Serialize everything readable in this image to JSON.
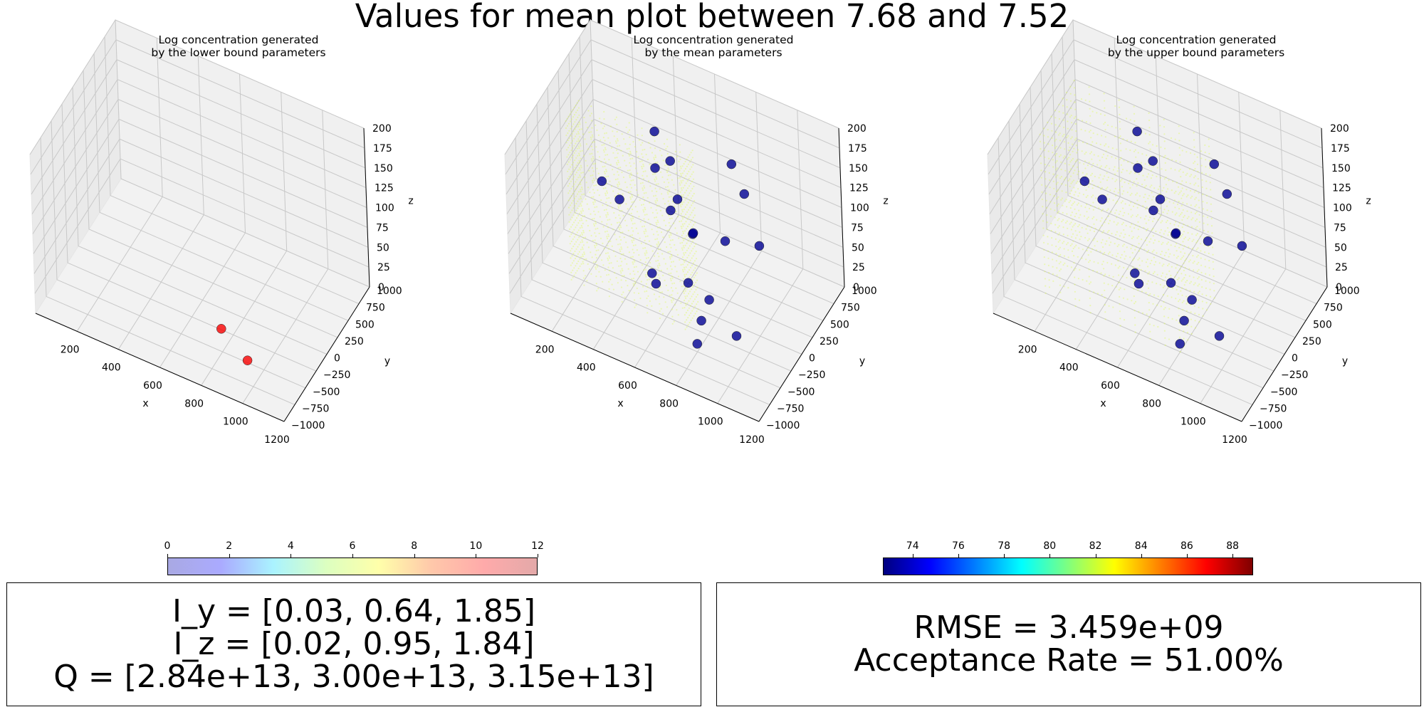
{
  "figure": {
    "suptitle": "Values for mean plot between 7.68 and 7.52"
  },
  "chart_data": [
    {
      "type": "scatter",
      "title": "Log concentration generated\nby the lower bound parameters",
      "xlabel": "x",
      "ylabel": "y",
      "zlabel": "z",
      "xlim": [
        0,
        1200
      ],
      "ylim": [
        -1000,
        1000
      ],
      "zlim": [
        0,
        200
      ],
      "xticks": [
        "200",
        "400",
        "600",
        "800",
        "1000",
        "1200"
      ],
      "yticks": [
        "−1000",
        "−750",
        "−500",
        "−250",
        "0",
        "250",
        "500",
        "750",
        "1000"
      ],
      "zticks": [
        "0",
        "25",
        "50",
        "75",
        "100",
        "125",
        "150",
        "175",
        "200"
      ],
      "grid": true,
      "concentration_cloud": null,
      "sensor_points": [
        {
          "x": 760,
          "y": -330,
          "z": 10,
          "value": 87
        },
        {
          "x": 925,
          "y": -520,
          "z": 5,
          "value": 87
        }
      ]
    },
    {
      "type": "scatter",
      "title": "Log concentration generated\nby the mean parameters",
      "xlabel": "x",
      "ylabel": "y",
      "zlabel": "z",
      "xlim": [
        0,
        1200
      ],
      "ylim": [
        -1000,
        1000
      ],
      "zlim": [
        0,
        200
      ],
      "xticks": [
        "200",
        "400",
        "600",
        "800",
        "1000",
        "1200"
      ],
      "yticks": [
        "−1000",
        "−750",
        "−500",
        "−250",
        "0",
        "250",
        "500",
        "750",
        "1000"
      ],
      "zticks": [
        "0",
        "25",
        "50",
        "75",
        "100",
        "125",
        "150",
        "175",
        "200"
      ],
      "grid": true,
      "concentration_cloud": {
        "x": [
          150,
          700
        ],
        "y": [
          -300,
          0
        ],
        "z": [
          0,
          200
        ],
        "color": "#dcff40"
      },
      "sensor_points": [
        {
          "x": 250,
          "y": 0,
          "z": 110,
          "value": 73
        },
        {
          "x": 300,
          "y": 150,
          "z": 80,
          "value": 73
        },
        {
          "x": 450,
          "y": 300,
          "z": 170,
          "value": 73
        },
        {
          "x": 480,
          "y": 150,
          "z": 140,
          "value": 73
        },
        {
          "x": 500,
          "y": 400,
          "z": 130,
          "value": 73
        },
        {
          "x": 560,
          "y": 100,
          "z": 100,
          "value": 73
        },
        {
          "x": 620,
          "y": 300,
          "z": 60,
          "value": 73
        },
        {
          "x": 640,
          "y": -100,
          "z": 140,
          "value": 73
        },
        {
          "x": 700,
          "y": -50,
          "z": 100,
          "value": 73
        },
        {
          "x": 520,
          "y": -180,
          "z": 40,
          "value": 73
        },
        {
          "x": 700,
          "y": -200,
          "z": 50,
          "value": 73
        },
        {
          "x": 520,
          "y": -100,
          "z": 20,
          "value": 73
        },
        {
          "x": 800,
          "y": 400,
          "z": 160,
          "value": 73
        },
        {
          "x": 880,
          "y": 300,
          "z": 140,
          "value": 73
        },
        {
          "x": 800,
          "y": 200,
          "z": 80,
          "value": 73
        },
        {
          "x": 800,
          "y": -200,
          "z": 40,
          "value": 73
        },
        {
          "x": 780,
          "y": -300,
          "z": 20,
          "value": 73
        },
        {
          "x": 950,
          "y": -300,
          "z": 20,
          "value": 73
        },
        {
          "x": 900,
          "y": 500,
          "z": 60,
          "value": 73
        },
        {
          "x": 800,
          "y": -500,
          "z": 10,
          "value": 73
        }
      ]
    },
    {
      "type": "scatter",
      "title": "Log concentration generated\nby the upper bound parameters",
      "xlabel": "x",
      "ylabel": "y",
      "zlabel": "z",
      "xlim": [
        0,
        1200
      ],
      "ylim": [
        -1000,
        1000
      ],
      "zlim": [
        0,
        200
      ],
      "xticks": [
        "200",
        "400",
        "600",
        "800",
        "1000",
        "1200"
      ],
      "yticks": [
        "−1000",
        "−750",
        "−500",
        "−250",
        "0",
        "250",
        "500",
        "750",
        "1000"
      ],
      "zticks": [
        "0",
        "25",
        "50",
        "75",
        "100",
        "125",
        "150",
        "175",
        "200"
      ],
      "grid": true,
      "concentration_cloud": {
        "x": [
          150,
          800
        ],
        "y": [
          -500,
          300
        ],
        "z": [
          0,
          200
        ],
        "color": "#dcff40"
      },
      "sensor_points": [
        {
          "x": 250,
          "y": 0,
          "z": 110,
          "value": 73
        },
        {
          "x": 300,
          "y": 150,
          "z": 80,
          "value": 73
        },
        {
          "x": 450,
          "y": 300,
          "z": 170,
          "value": 73
        },
        {
          "x": 480,
          "y": 150,
          "z": 140,
          "value": 73
        },
        {
          "x": 500,
          "y": 400,
          "z": 130,
          "value": 73
        },
        {
          "x": 560,
          "y": 100,
          "z": 100,
          "value": 73
        },
        {
          "x": 620,
          "y": 300,
          "z": 60,
          "value": 73
        },
        {
          "x": 640,
          "y": -100,
          "z": 140,
          "value": 73
        },
        {
          "x": 700,
          "y": -50,
          "z": 100,
          "value": 73
        },
        {
          "x": 520,
          "y": -180,
          "z": 40,
          "value": 73
        },
        {
          "x": 700,
          "y": -200,
          "z": 50,
          "value": 73
        },
        {
          "x": 520,
          "y": -100,
          "z": 20,
          "value": 73
        },
        {
          "x": 800,
          "y": 400,
          "z": 160,
          "value": 73
        },
        {
          "x": 880,
          "y": 300,
          "z": 140,
          "value": 73
        },
        {
          "x": 800,
          "y": 200,
          "z": 80,
          "value": 73
        },
        {
          "x": 800,
          "y": -200,
          "z": 40,
          "value": 73
        },
        {
          "x": 780,
          "y": -300,
          "z": 20,
          "value": 73
        },
        {
          "x": 950,
          "y": -300,
          "z": 20,
          "value": 73
        },
        {
          "x": 900,
          "y": 500,
          "z": 60,
          "value": 73
        },
        {
          "x": 800,
          "y": -500,
          "z": 10,
          "value": 73
        }
      ]
    }
  ],
  "colorbars": {
    "concentration": {
      "ticks": [
        "0",
        "2",
        "4",
        "6",
        "8",
        "10",
        "12"
      ],
      "range": [
        0,
        12
      ],
      "colors": [
        "#a9a9e3",
        "#aaaaff",
        "#aaf3ff",
        "#dcffc0",
        "#ffffaa",
        "#ffc8aa",
        "#ffaaaa",
        "#e3a9a9"
      ]
    },
    "sensor": {
      "ticks": [
        "74",
        "76",
        "78",
        "80",
        "82",
        "84",
        "86",
        "88"
      ],
      "range": [
        72.7,
        88.9
      ],
      "colors": [
        "#00007f",
        "#0000ff",
        "#007fff",
        "#00ffff",
        "#7fff7f",
        "#ffff00",
        "#ff7f00",
        "#ff0000",
        "#7f0000"
      ]
    }
  },
  "boxes": {
    "left": {
      "line1": "I_y = [0.03, 0.64, 1.85]",
      "line2": "I_z = [0.02, 0.95, 1.84]",
      "line3": "Q = [2.84e+13, 3.00e+13, 3.15e+13]"
    },
    "right": {
      "line1": "RMSE = 3.459e+09",
      "line2": "Acceptance Rate = 51.00%"
    }
  }
}
